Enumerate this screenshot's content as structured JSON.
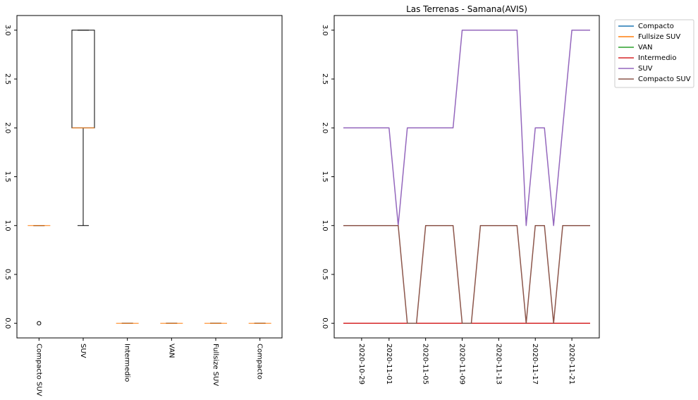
{
  "chart_data": [
    {
      "type": "box",
      "categories": [
        "Compacto SUV",
        "SUV",
        "Intermedio",
        "VAN",
        "Fullsize SUV",
        "Compacto"
      ],
      "boxes": [
        {
          "label": "Compacto SUV",
          "min": 1.0,
          "q1": 1.0,
          "median": 1.0,
          "q3": 1.0,
          "max": 1.0,
          "outliers": [
            0.0
          ]
        },
        {
          "label": "SUV",
          "min": 1.0,
          "q1": 2.0,
          "median": 2.0,
          "q3": 3.0,
          "max": 3.0,
          "outliers": []
        },
        {
          "label": "Intermedio",
          "min": 0.0,
          "q1": 0.0,
          "median": 0.0,
          "q3": 0.0,
          "max": 0.0,
          "outliers": []
        },
        {
          "label": "VAN",
          "min": 0.0,
          "q1": 0.0,
          "median": 0.0,
          "q3": 0.0,
          "max": 0.0,
          "outliers": []
        },
        {
          "label": "Fullsize SUV",
          "min": 0.0,
          "q1": 0.0,
          "median": 0.0,
          "q3": 0.0,
          "max": 0.0,
          "outliers": []
        },
        {
          "label": "Compacto",
          "min": 0.0,
          "q1": 0.0,
          "median": 0.0,
          "q3": 0.0,
          "max": 0.0,
          "outliers": []
        }
      ],
      "yticks": [
        "0.0",
        "0.5",
        "1.0",
        "1.5",
        "2.0",
        "2.5",
        "3.0"
      ],
      "ylim": [
        -0.15,
        3.15
      ],
      "title": "",
      "median_color": "#ff7f0e",
      "box_color": "#000000"
    },
    {
      "type": "line",
      "title": "Las Terrenas - Samana(AVIS)",
      "x": [
        "2020-10-27",
        "2020-10-28",
        "2020-10-29",
        "2020-10-30",
        "2020-10-31",
        "2020-11-01",
        "2020-11-02",
        "2020-11-03",
        "2020-11-04",
        "2020-11-05",
        "2020-11-06",
        "2020-11-07",
        "2020-11-08",
        "2020-11-09",
        "2020-11-10",
        "2020-11-11",
        "2020-11-12",
        "2020-11-13",
        "2020-11-14",
        "2020-11-15",
        "2020-11-16",
        "2020-11-17",
        "2020-11-18",
        "2020-11-19",
        "2020-11-20",
        "2020-11-21",
        "2020-11-22",
        "2020-11-23"
      ],
      "xticks": [
        "2020-10-29",
        "2020-11-01",
        "2020-11-05",
        "2020-11-09",
        "2020-11-13",
        "2020-11-17",
        "2020-11-21"
      ],
      "yticks": [
        "0.0",
        "0.5",
        "1.0",
        "1.5",
        "2.0",
        "2.5",
        "3.0"
      ],
      "xlim": [
        "2020-10-26",
        "2020-11-24"
      ],
      "ylim": [
        -0.15,
        3.15
      ],
      "legend_position": "outside-upper-right",
      "series": [
        {
          "name": "Compacto",
          "color": "#1f77b4",
          "values": [
            0,
            0,
            0,
            0,
            0,
            0,
            0,
            0,
            0,
            0,
            0,
            0,
            0,
            0,
            0,
            0,
            0,
            0,
            0,
            0,
            0,
            0,
            0,
            0,
            0,
            0,
            0,
            0
          ]
        },
        {
          "name": "Fullsize SUV",
          "color": "#ff7f0e",
          "values": [
            0,
            0,
            0,
            0,
            0,
            0,
            0,
            0,
            0,
            0,
            0,
            0,
            0,
            0,
            0,
            0,
            0,
            0,
            0,
            0,
            0,
            0,
            0,
            0,
            0,
            0,
            0,
            0
          ]
        },
        {
          "name": "VAN",
          "color": "#2ca02c",
          "values": [
            0,
            0,
            0,
            0,
            0,
            0,
            0,
            0,
            0,
            0,
            0,
            0,
            0,
            0,
            0,
            0,
            0,
            0,
            0,
            0,
            0,
            0,
            0,
            0,
            0,
            0,
            0,
            0
          ]
        },
        {
          "name": "Intermedio",
          "color": "#d62728",
          "values": [
            0,
            0,
            0,
            0,
            0,
            0,
            0,
            0,
            0,
            0,
            0,
            0,
            0,
            0,
            0,
            0,
            0,
            0,
            0,
            0,
            0,
            0,
            0,
            0,
            0,
            0,
            0,
            0
          ]
        },
        {
          "name": "SUV",
          "color": "#9467bd",
          "values": [
            2,
            2,
            2,
            2,
            2,
            2,
            1,
            2,
            2,
            2,
            2,
            2,
            2,
            3,
            3,
            3,
            3,
            3,
            3,
            3,
            1,
            2,
            2,
            1,
            2,
            3,
            3,
            3
          ]
        },
        {
          "name": "Compacto SUV",
          "color": "#8c564b",
          "values": [
            1,
            1,
            1,
            1,
            1,
            1,
            1,
            0,
            0,
            1,
            1,
            1,
            1,
            0,
            0,
            1,
            1,
            1,
            1,
            1,
            0,
            1,
            1,
            0,
            1,
            1,
            1,
            1
          ]
        }
      ]
    }
  ]
}
